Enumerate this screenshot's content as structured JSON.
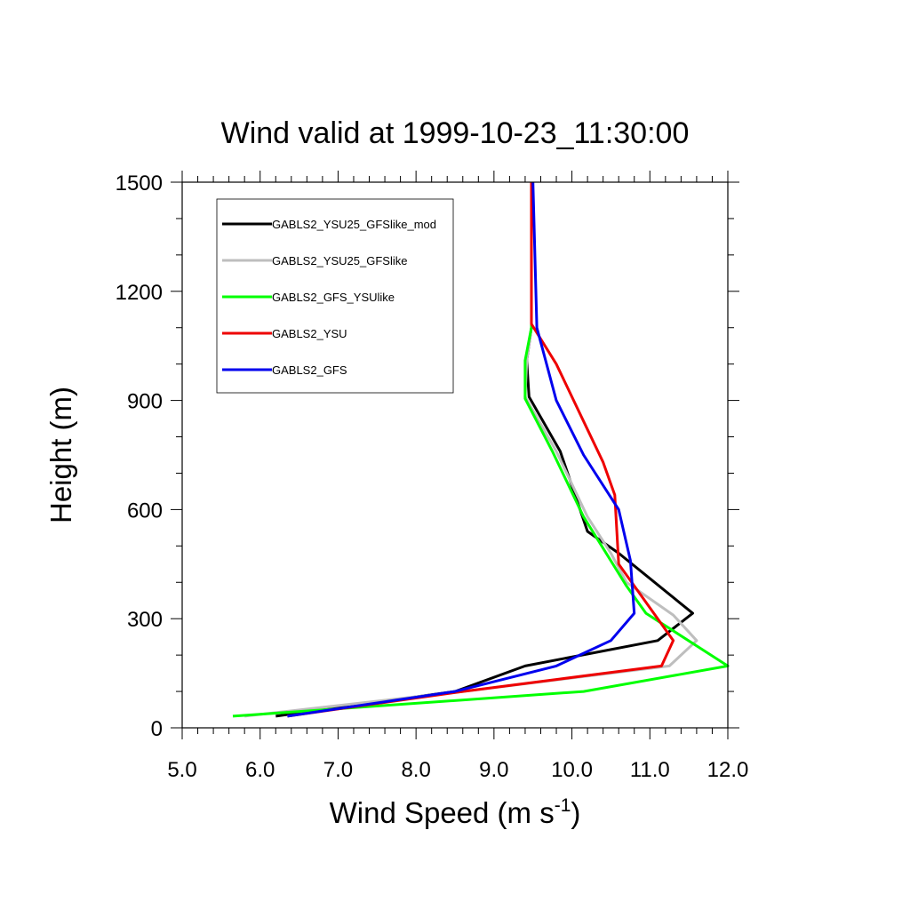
{
  "chart_data": {
    "type": "line",
    "title": "Wind valid at 1999-10-23_11:30:00",
    "xlabel": {
      "main": "Wind Speed (m s",
      "sup": "-1",
      "close": ")"
    },
    "ylabel": "Height (m)",
    "xlim": [
      5.0,
      12.0
    ],
    "ylim": [
      0,
      1500
    ],
    "xticks": [
      "5.0",
      "6.0",
      "7.0",
      "8.0",
      "9.0",
      "10.0",
      "11.0",
      "12.0"
    ],
    "xtick_values": [
      5,
      6,
      7,
      8,
      9,
      10,
      11,
      12
    ],
    "yticks": [
      "0",
      "300",
      "600",
      "900",
      "1200",
      "1500"
    ],
    "ytick_values": [
      0,
      300,
      600,
      900,
      1200,
      1500
    ],
    "grid": false,
    "legend_position": "top-left",
    "series": [
      {
        "name": "GABLS2_YSU25_GFSlike_mod",
        "color": "#000000",
        "points": [
          [
            6.2,
            32
          ],
          [
            8.5,
            100
          ],
          [
            9.4,
            170
          ],
          [
            11.1,
            240
          ],
          [
            11.55,
            315
          ],
          [
            10.6,
            480
          ],
          [
            10.2,
            540
          ],
          [
            9.85,
            760
          ],
          [
            9.45,
            910
          ],
          [
            9.42,
            1010
          ],
          [
            9.48,
            1100
          ],
          [
            9.48,
            1500
          ]
        ]
      },
      {
        "name": "GABLS2_YSU25_GFSlike",
        "color": "#bebebe",
        "points": [
          [
            5.8,
            32
          ],
          [
            8.6,
            100
          ],
          [
            11.25,
            170
          ],
          [
            11.6,
            240
          ],
          [
            11.3,
            310
          ],
          [
            10.7,
            400
          ],
          [
            10.5,
            480
          ],
          [
            10.2,
            580
          ],
          [
            9.8,
            760
          ],
          [
            9.4,
            910
          ],
          [
            9.42,
            1010
          ],
          [
            9.48,
            1100
          ],
          [
            9.48,
            1500
          ]
        ]
      },
      {
        "name": "GABLS2_GFS_YSUlike",
        "color": "#00ff00",
        "points": [
          [
            5.65,
            32
          ],
          [
            10.15,
            100
          ],
          [
            12.0,
            170
          ],
          [
            10.95,
            315
          ],
          [
            10.7,
            390
          ],
          [
            10.15,
            580
          ],
          [
            9.75,
            760
          ],
          [
            9.4,
            905
          ],
          [
            9.4,
            1010
          ],
          [
            9.48,
            1100
          ],
          [
            9.48,
            1500
          ]
        ]
      },
      {
        "name": "GABLS2_YSU",
        "color": "#ee0000",
        "points": [
          [
            6.35,
            32
          ],
          [
            8.6,
            100
          ],
          [
            11.15,
            170
          ],
          [
            11.3,
            240
          ],
          [
            10.6,
            450
          ],
          [
            10.55,
            640
          ],
          [
            10.4,
            730
          ],
          [
            10.2,
            820
          ],
          [
            9.8,
            1000
          ],
          [
            9.48,
            1110
          ],
          [
            9.48,
            1500
          ]
        ]
      },
      {
        "name": "GABLS2_GFS",
        "color": "#0000ee",
        "points": [
          [
            6.35,
            32
          ],
          [
            8.5,
            100
          ],
          [
            9.8,
            170
          ],
          [
            10.5,
            240
          ],
          [
            10.8,
            315
          ],
          [
            10.75,
            460
          ],
          [
            10.6,
            600
          ],
          [
            10.15,
            750
          ],
          [
            9.8,
            900
          ],
          [
            9.55,
            1100
          ],
          [
            9.5,
            1500
          ]
        ]
      }
    ]
  }
}
